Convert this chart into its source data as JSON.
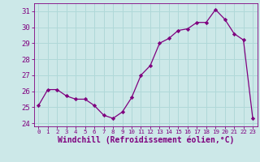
{
  "x": [
    0,
    1,
    2,
    3,
    4,
    5,
    6,
    7,
    8,
    9,
    10,
    11,
    12,
    13,
    14,
    15,
    16,
    17,
    18,
    19,
    20,
    21,
    22,
    23
  ],
  "y": [
    25.1,
    26.1,
    26.1,
    25.7,
    25.5,
    25.5,
    25.1,
    24.5,
    24.3,
    24.7,
    25.6,
    27.0,
    27.6,
    29.0,
    29.3,
    29.8,
    29.9,
    30.3,
    30.3,
    31.1,
    30.5,
    29.6,
    29.2,
    24.3
  ],
  "line_color": "#7f007f",
  "marker": "D",
  "marker_size": 2.2,
  "bg_color": "#cce8e8",
  "grid_color": "#b0d8d8",
  "tick_color": "#7f007f",
  "label_color": "#7f007f",
  "xlabel": "Windchill (Refroidissement éolien,°C)",
  "ylim": [
    23.8,
    31.5
  ],
  "yticks": [
    24,
    25,
    26,
    27,
    28,
    29,
    30,
    31
  ],
  "font_size": 6.5,
  "xlabel_fontsize": 7.0
}
